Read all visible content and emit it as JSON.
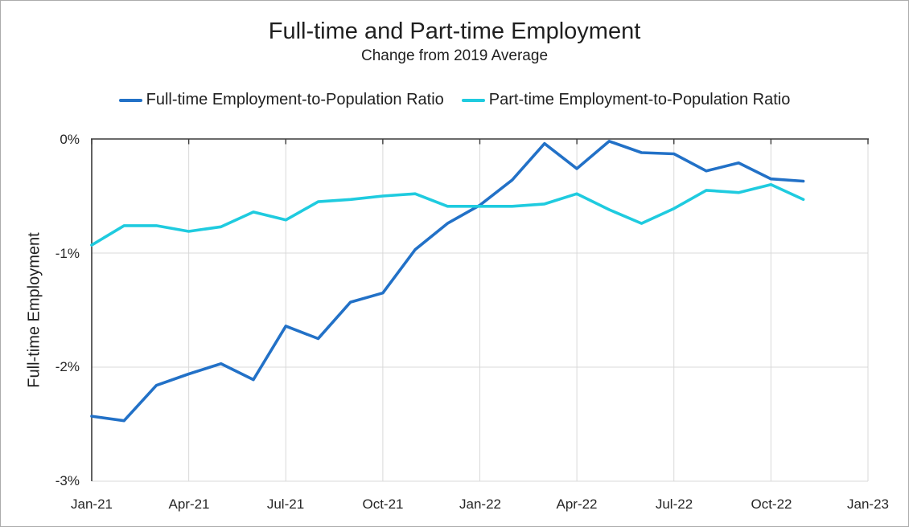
{
  "header": {
    "title": "Full-time and Part-time Employment",
    "subtitle": "Change from 2019 Average"
  },
  "legend": {
    "items": [
      {
        "label": "Full-time Employment-to-Population Ratio",
        "color": "#2271C7"
      },
      {
        "label": "Part-time Employment-to-Population Ratio",
        "color": "#1FCBDF"
      }
    ]
  },
  "y_axis": {
    "title": "Full-time Employment",
    "tick_labels": [
      "0%",
      "-1%",
      "-2%",
      "-3%"
    ]
  },
  "x_axis": {
    "tick_labels": [
      "Jan-21",
      "Apr-21",
      "Jul-21",
      "Oct-21",
      "Jan-22",
      "Apr-22",
      "Jul-22",
      "Oct-22",
      "Jan-23"
    ]
  },
  "colors": {
    "full_time": "#2271C7",
    "part_time": "#1FCBDF",
    "grid": "#D9D9D9",
    "axis": "#3A3A3A",
    "text": "#262626"
  },
  "chart_data": {
    "type": "line",
    "title": "Full-time and Part-time Employment",
    "subtitle": "Change from 2019 Average",
    "ylabel": "Full-time Employment",
    "xlabel": "",
    "ylim": [
      -3,
      0
    ],
    "y_unit": "%",
    "x_range_labels": [
      "Jan-21",
      "Jan-23"
    ],
    "grid": true,
    "legend_position": "top",
    "x": [
      "Jan-21",
      "Feb-21",
      "Mar-21",
      "Apr-21",
      "May-21",
      "Jun-21",
      "Jul-21",
      "Aug-21",
      "Sep-21",
      "Oct-21",
      "Nov-21",
      "Dec-21",
      "Jan-22",
      "Feb-22",
      "Mar-22",
      "Apr-22",
      "May-22",
      "Jun-22",
      "Jul-22",
      "Aug-22",
      "Sep-22",
      "Oct-22",
      "Nov-22"
    ],
    "series": [
      {
        "name": "Full-time Employment-to-Population Ratio",
        "color": "#2271C7",
        "values": [
          -2.43,
          -2.47,
          -2.16,
          -2.06,
          -1.97,
          -2.11,
          -1.64,
          -1.75,
          -1.43,
          -1.35,
          -0.97,
          -0.74,
          -0.58,
          -0.36,
          -0.04,
          -0.26,
          -0.02,
          -0.12,
          -0.13,
          -0.28,
          -0.21,
          -0.35,
          -0.37
        ]
      },
      {
        "name": "Part-time Employment-to-Population Ratio",
        "color": "#1FCBDF",
        "values": [
          -0.93,
          -0.76,
          -0.76,
          -0.81,
          -0.77,
          -0.64,
          -0.71,
          -0.55,
          -0.53,
          -0.5,
          -0.48,
          -0.59,
          -0.59,
          -0.59,
          -0.57,
          -0.48,
          -0.62,
          -0.74,
          -0.61,
          -0.45,
          -0.47,
          -0.4,
          -0.53
        ]
      }
    ]
  }
}
